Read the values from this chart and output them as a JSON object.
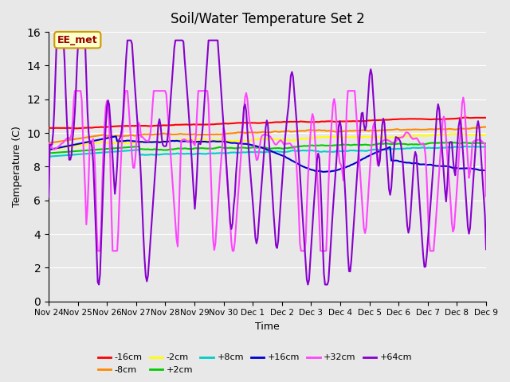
{
  "title": "Soil/Water Temperature Set 2",
  "xlabel": "Time",
  "ylabel": "Temperature (C)",
  "ylim": [
    0,
    16
  ],
  "yticks": [
    0,
    2,
    4,
    6,
    8,
    10,
    12,
    14,
    16
  ],
  "background_color": "#e8e8e8",
  "plot_bg_color": "#e8e8e8",
  "annotation_text": "EE_met",
  "annotation_bg": "#ffffcc",
  "annotation_border": "#cc9900",
  "annotation_text_color": "#990000",
  "x_labels": [
    "Nov 24",
    "Nov 25",
    "Nov 26",
    "Nov 27",
    "Nov 28",
    "Nov 29",
    "Nov 30",
    "Dec 1",
    "Dec 2",
    "Dec 3",
    "Dec 4",
    "Dec 5",
    "Dec 6",
    "Dec 7",
    "Dec 8",
    "Dec 9"
  ],
  "series": {
    "-16cm": {
      "color": "#ff0000",
      "lw": 1.5
    },
    "-8cm": {
      "color": "#ff8800",
      "lw": 1.5
    },
    "-2cm": {
      "color": "#ffff00",
      "lw": 1.5
    },
    "+2cm": {
      "color": "#00cc00",
      "lw": 1.5
    },
    "+8cm": {
      "color": "#00cccc",
      "lw": 1.5
    },
    "+16cm": {
      "color": "#0000cc",
      "lw": 1.5
    },
    "+32cm": {
      "color": "#ff44ff",
      "lw": 1.5
    },
    "+64cm": {
      "color": "#8800cc",
      "lw": 1.5
    }
  },
  "legend_order": [
    "-16cm",
    "-8cm",
    "-2cm",
    "+2cm",
    "+8cm",
    "+16cm",
    "+32cm",
    "+64cm"
  ]
}
